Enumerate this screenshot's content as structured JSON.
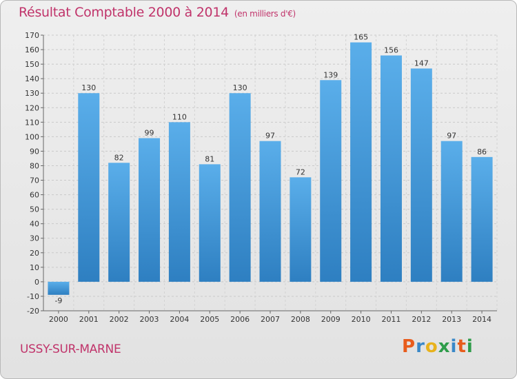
{
  "chart_data": {
    "type": "bar",
    "title": "Résultat Comptable 2000 à 2014",
    "subtitle": "(en milliers d'€)",
    "categories": [
      "2000",
      "2001",
      "2002",
      "2003",
      "2004",
      "2005",
      "2006",
      "2007",
      "2008",
      "2009",
      "2010",
      "2011",
      "2012",
      "2013",
      "2014"
    ],
    "values": [
      -9,
      130,
      82,
      99,
      110,
      81,
      130,
      97,
      72,
      139,
      165,
      156,
      147,
      97,
      86
    ],
    "ylim": [
      -20,
      170
    ],
    "yticks": [
      -20,
      -10,
      0,
      10,
      20,
      30,
      40,
      50,
      60,
      70,
      80,
      90,
      100,
      110,
      120,
      130,
      140,
      150,
      160,
      170
    ],
    "grid": true,
    "bar_color": "#4a9ee0",
    "legend": "none"
  },
  "footer": {
    "commune": "USSY-SUR-MARNE",
    "logo": "Proxiti"
  },
  "colors": {
    "accent": "#c0336a",
    "logo_letters": [
      "#e85c1c",
      "#3a88c8",
      "#e8b21c",
      "#2e9c4a",
      "#3a88c8",
      "#e85c1c",
      "#2e9c4a"
    ]
  }
}
